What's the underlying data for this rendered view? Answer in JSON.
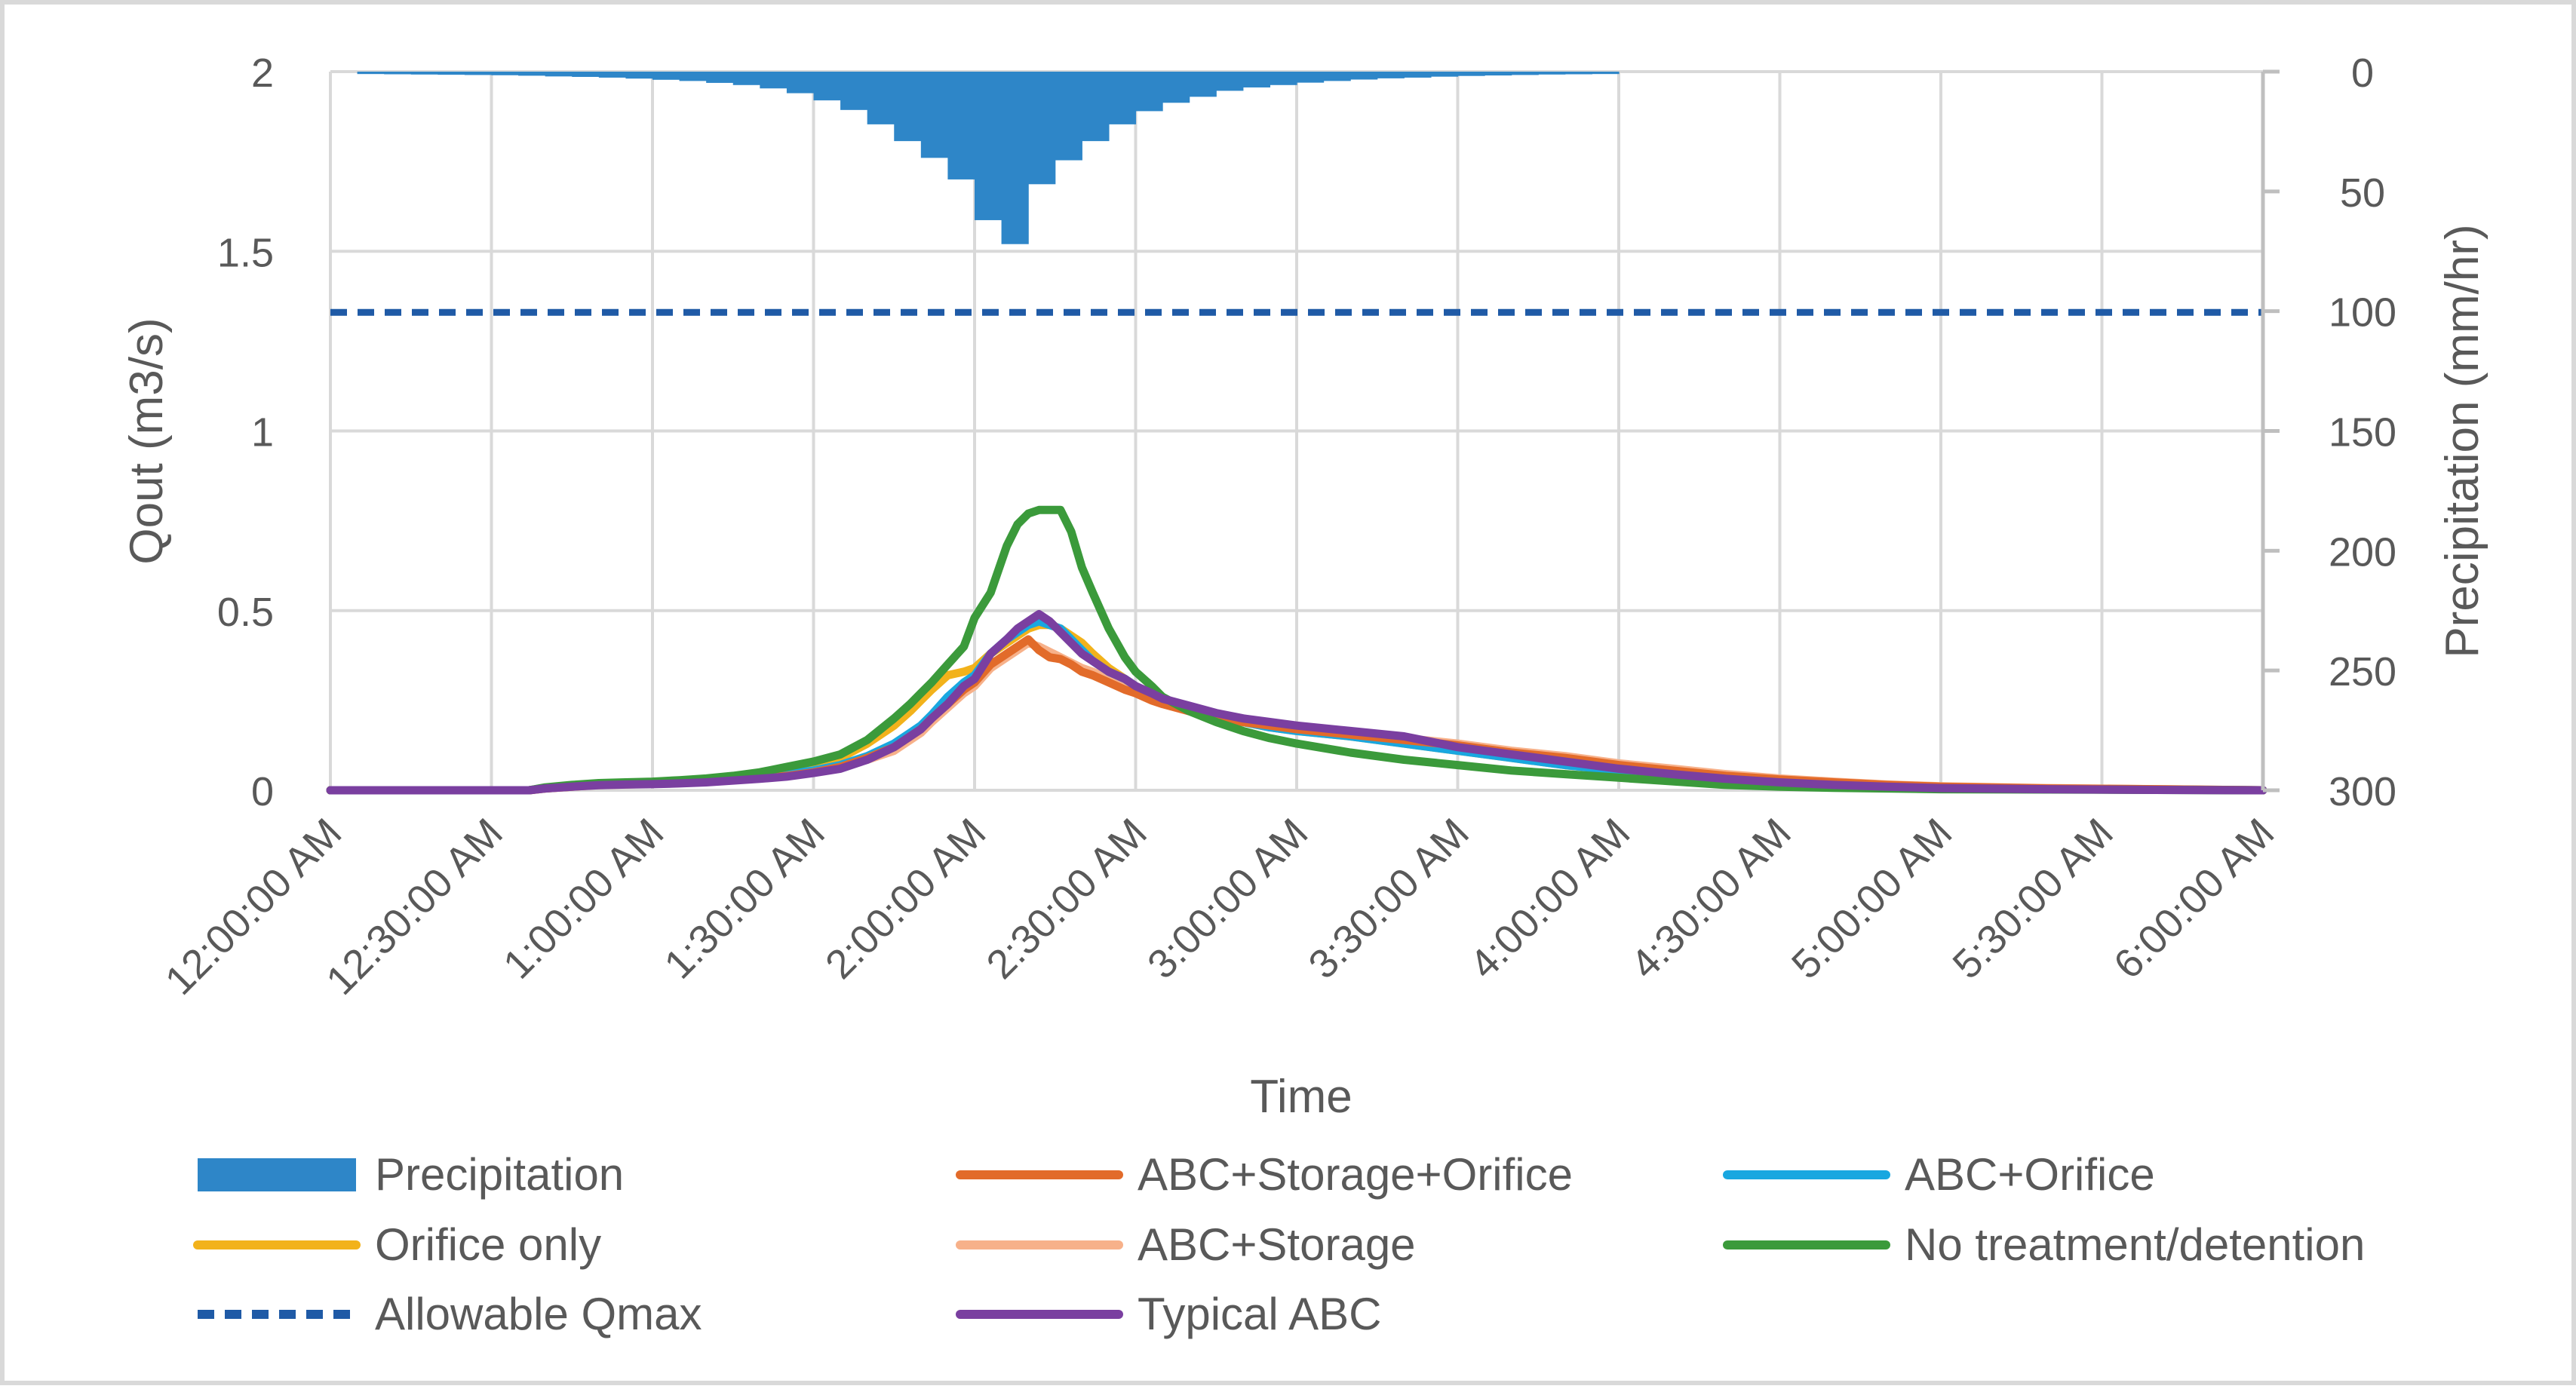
{
  "chart_data": {
    "type": "line",
    "title": "",
    "xlabel": "Time",
    "ylabel": "Qout (m3/s)",
    "y2label": "Precipitation (mm/hr)",
    "xlim_minutes": [
      0,
      360
    ],
    "ylim": [
      0,
      2
    ],
    "y2lim": [
      0,
      300
    ],
    "y2_inverted": true,
    "x_ticks_minutes": [
      0,
      30,
      60,
      90,
      120,
      150,
      180,
      210,
      240,
      270,
      300,
      330,
      360
    ],
    "x_tick_labels": [
      "12:00:00 AM",
      "12:30:00 AM",
      "1:00:00 AM",
      "1:30:00 AM",
      "2:00:00 AM",
      "2:30:00 AM",
      "3:00:00 AM",
      "3:30:00 AM",
      "4:00:00 AM",
      "4:30:00 AM",
      "5:00:00 AM",
      "5:30:00 AM",
      "6:00:00 AM"
    ],
    "y_ticks": [
      0,
      0.5,
      1,
      1.5,
      2
    ],
    "y_tick_labels": [
      "0",
      "0.5",
      "1",
      "1.5",
      "2"
    ],
    "y2_ticks": [
      0,
      50,
      100,
      150,
      200,
      250,
      300
    ],
    "y2_tick_labels": [
      "0",
      "50",
      "100",
      "150",
      "200",
      "250",
      "300"
    ],
    "grid": true,
    "legend_position": "bottom",
    "precipitation": {
      "name": "Precipitation",
      "color": "#2e86c8",
      "bin_minutes": 5,
      "start_minutes": [
        5,
        10,
        15,
        20,
        25,
        30,
        35,
        40,
        45,
        50,
        55,
        60,
        65,
        70,
        75,
        80,
        85,
        90,
        95,
        100,
        105,
        110,
        115,
        120,
        125,
        130,
        135,
        140,
        145,
        150,
        155,
        160,
        165,
        170,
        175,
        180,
        185,
        190,
        195,
        200,
        205,
        210,
        215,
        220,
        225,
        230,
        235
      ],
      "values_mm_hr": [
        1.0,
        1.1,
        1.2,
        1.3,
        1.4,
        1.5,
        1.7,
        2.0,
        2.2,
        2.5,
        2.9,
        3.4,
        3.9,
        4.7,
        5.6,
        7.0,
        9.0,
        12.0,
        16.0,
        22.0,
        29.0,
        36.0,
        45.0,
        62.0,
        72.0,
        47.0,
        37.0,
        29.0,
        22.0,
        16.5,
        13.0,
        10.5,
        8.0,
        6.6,
        5.6,
        4.6,
        3.9,
        3.3,
        2.8,
        2.5,
        2.1,
        1.8,
        1.6,
        1.4,
        1.2,
        1.1,
        1.0
      ]
    },
    "x_minutes": [
      0,
      20,
      37,
      40,
      45,
      50,
      55,
      60,
      65,
      70,
      75,
      80,
      85,
      90,
      95,
      100,
      105,
      108,
      110,
      112,
      115,
      118,
      120,
      123,
      126,
      128,
      130,
      132,
      134,
      136,
      138,
      140,
      142,
      145,
      148,
      150,
      153,
      155,
      160,
      165,
      170,
      175,
      180,
      190,
      200,
      210,
      220,
      230,
      240,
      250,
      260,
      270,
      280,
      290,
      300,
      320,
      340,
      360
    ],
    "series": [
      {
        "name": "ABC+Storage+Orifice",
        "color": "#e26b2a",
        "dash": false,
        "values": [
          0,
          0,
          0,
          0.005,
          0.01,
          0.015,
          0.017,
          0.018,
          0.02,
          0.023,
          0.028,
          0.033,
          0.04,
          0.05,
          0.065,
          0.09,
          0.12,
          0.15,
          0.17,
          0.2,
          0.24,
          0.28,
          0.3,
          0.35,
          0.38,
          0.4,
          0.42,
          0.39,
          0.37,
          0.365,
          0.35,
          0.33,
          0.32,
          0.3,
          0.28,
          0.27,
          0.25,
          0.24,
          0.22,
          0.2,
          0.19,
          0.18,
          0.17,
          0.155,
          0.14,
          0.125,
          0.105,
          0.09,
          0.07,
          0.055,
          0.04,
          0.03,
          0.022,
          0.015,
          0.01,
          0.005,
          0.003,
          0
        ]
      },
      {
        "name": "ABC+Orifice",
        "color": "#19a7e0",
        "dash": false,
        "values": [
          0,
          0,
          0,
          0.006,
          0.012,
          0.016,
          0.018,
          0.02,
          0.023,
          0.027,
          0.032,
          0.038,
          0.045,
          0.055,
          0.07,
          0.095,
          0.13,
          0.16,
          0.18,
          0.21,
          0.26,
          0.3,
          0.32,
          0.38,
          0.42,
          0.44,
          0.46,
          0.47,
          0.46,
          0.45,
          0.42,
          0.39,
          0.36,
          0.33,
          0.31,
          0.29,
          0.265,
          0.25,
          0.225,
          0.205,
          0.19,
          0.175,
          0.165,
          0.15,
          0.13,
          0.11,
          0.09,
          0.07,
          0.055,
          0.04,
          0.028,
          0.02,
          0.014,
          0.01,
          0.007,
          0.004,
          0.002,
          0
        ]
      },
      {
        "name": "Orifice only",
        "color": "#f2b21b",
        "dash": false,
        "values": [
          0,
          0,
          0,
          0.007,
          0.014,
          0.019,
          0.021,
          0.023,
          0.026,
          0.03,
          0.036,
          0.045,
          0.055,
          0.07,
          0.09,
          0.13,
          0.18,
          0.22,
          0.25,
          0.28,
          0.32,
          0.33,
          0.34,
          0.38,
          0.41,
          0.43,
          0.45,
          0.46,
          0.46,
          0.45,
          0.43,
          0.41,
          0.38,
          0.34,
          0.31,
          0.29,
          0.265,
          0.25,
          0.225,
          0.205,
          0.19,
          0.175,
          0.165,
          0.15,
          0.13,
          0.11,
          0.09,
          0.07,
          0.055,
          0.04,
          0.028,
          0.02,
          0.014,
          0.01,
          0.007,
          0.004,
          0.002,
          0
        ]
      },
      {
        "name": "ABC+Storage",
        "color": "#f7b18a",
        "dash": false,
        "values": [
          0,
          0,
          0,
          0.005,
          0.01,
          0.014,
          0.016,
          0.018,
          0.02,
          0.023,
          0.028,
          0.033,
          0.04,
          0.05,
          0.065,
          0.085,
          0.11,
          0.14,
          0.16,
          0.19,
          0.23,
          0.27,
          0.29,
          0.34,
          0.37,
          0.39,
          0.41,
          0.4,
          0.385,
          0.37,
          0.355,
          0.34,
          0.33,
          0.31,
          0.29,
          0.275,
          0.255,
          0.24,
          0.22,
          0.2,
          0.19,
          0.18,
          0.17,
          0.16,
          0.145,
          0.13,
          0.11,
          0.095,
          0.075,
          0.06,
          0.045,
          0.033,
          0.024,
          0.016,
          0.011,
          0.006,
          0.003,
          0
        ]
      },
      {
        "name": "No treatment/detention",
        "color": "#3b9a3b",
        "dash": false,
        "values": [
          0,
          0,
          0,
          0.008,
          0.015,
          0.02,
          0.022,
          0.024,
          0.028,
          0.033,
          0.04,
          0.05,
          0.065,
          0.08,
          0.1,
          0.14,
          0.2,
          0.24,
          0.27,
          0.3,
          0.35,
          0.4,
          0.48,
          0.55,
          0.68,
          0.74,
          0.77,
          0.78,
          0.78,
          0.78,
          0.72,
          0.62,
          0.55,
          0.45,
          0.37,
          0.33,
          0.29,
          0.26,
          0.22,
          0.19,
          0.165,
          0.145,
          0.13,
          0.105,
          0.085,
          0.07,
          0.055,
          0.045,
          0.035,
          0.025,
          0.015,
          0.01,
          0.007,
          0.005,
          0.003,
          0.002,
          0.001,
          0
        ]
      },
      {
        "name": "Allowable Qmax",
        "color": "#1f5aa6",
        "dash": true,
        "values": [
          1.33,
          1.33,
          1.33,
          1.33,
          1.33,
          1.33,
          1.33,
          1.33,
          1.33,
          1.33,
          1.33,
          1.33,
          1.33,
          1.33,
          1.33,
          1.33,
          1.33,
          1.33,
          1.33,
          1.33,
          1.33,
          1.33,
          1.33,
          1.33,
          1.33,
          1.33,
          1.33,
          1.33,
          1.33,
          1.33,
          1.33,
          1.33,
          1.33,
          1.33,
          1.33,
          1.33,
          1.33,
          1.33,
          1.33,
          1.33,
          1.33,
          1.33,
          1.33,
          1.33,
          1.33,
          1.33,
          1.33,
          1.33,
          1.33,
          1.33,
          1.33,
          1.33,
          1.33,
          1.33,
          1.33,
          1.33,
          1.33,
          1.33
        ]
      },
      {
        "name": "Typical ABC",
        "color": "#7a3fa0",
        "dash": false,
        "values": [
          0,
          0,
          0,
          0.005,
          0.01,
          0.014,
          0.016,
          0.017,
          0.019,
          0.022,
          0.027,
          0.032,
          0.038,
          0.048,
          0.06,
          0.085,
          0.12,
          0.15,
          0.17,
          0.2,
          0.24,
          0.29,
          0.31,
          0.38,
          0.42,
          0.45,
          0.47,
          0.49,
          0.47,
          0.44,
          0.41,
          0.38,
          0.36,
          0.33,
          0.31,
          0.29,
          0.27,
          0.255,
          0.235,
          0.215,
          0.2,
          0.19,
          0.18,
          0.165,
          0.15,
          0.12,
          0.1,
          0.08,
          0.06,
          0.045,
          0.032,
          0.022,
          0.015,
          0.01,
          0.006,
          0.003,
          0.001,
          0
        ]
      }
    ],
    "legend_entries": [
      "Precipitation",
      "ABC+Storage+Orifice",
      "ABC+Orifice",
      "Orifice only",
      "ABC+Storage",
      "No treatment/detention",
      "Allowable Qmax",
      "Typical ABC"
    ]
  }
}
